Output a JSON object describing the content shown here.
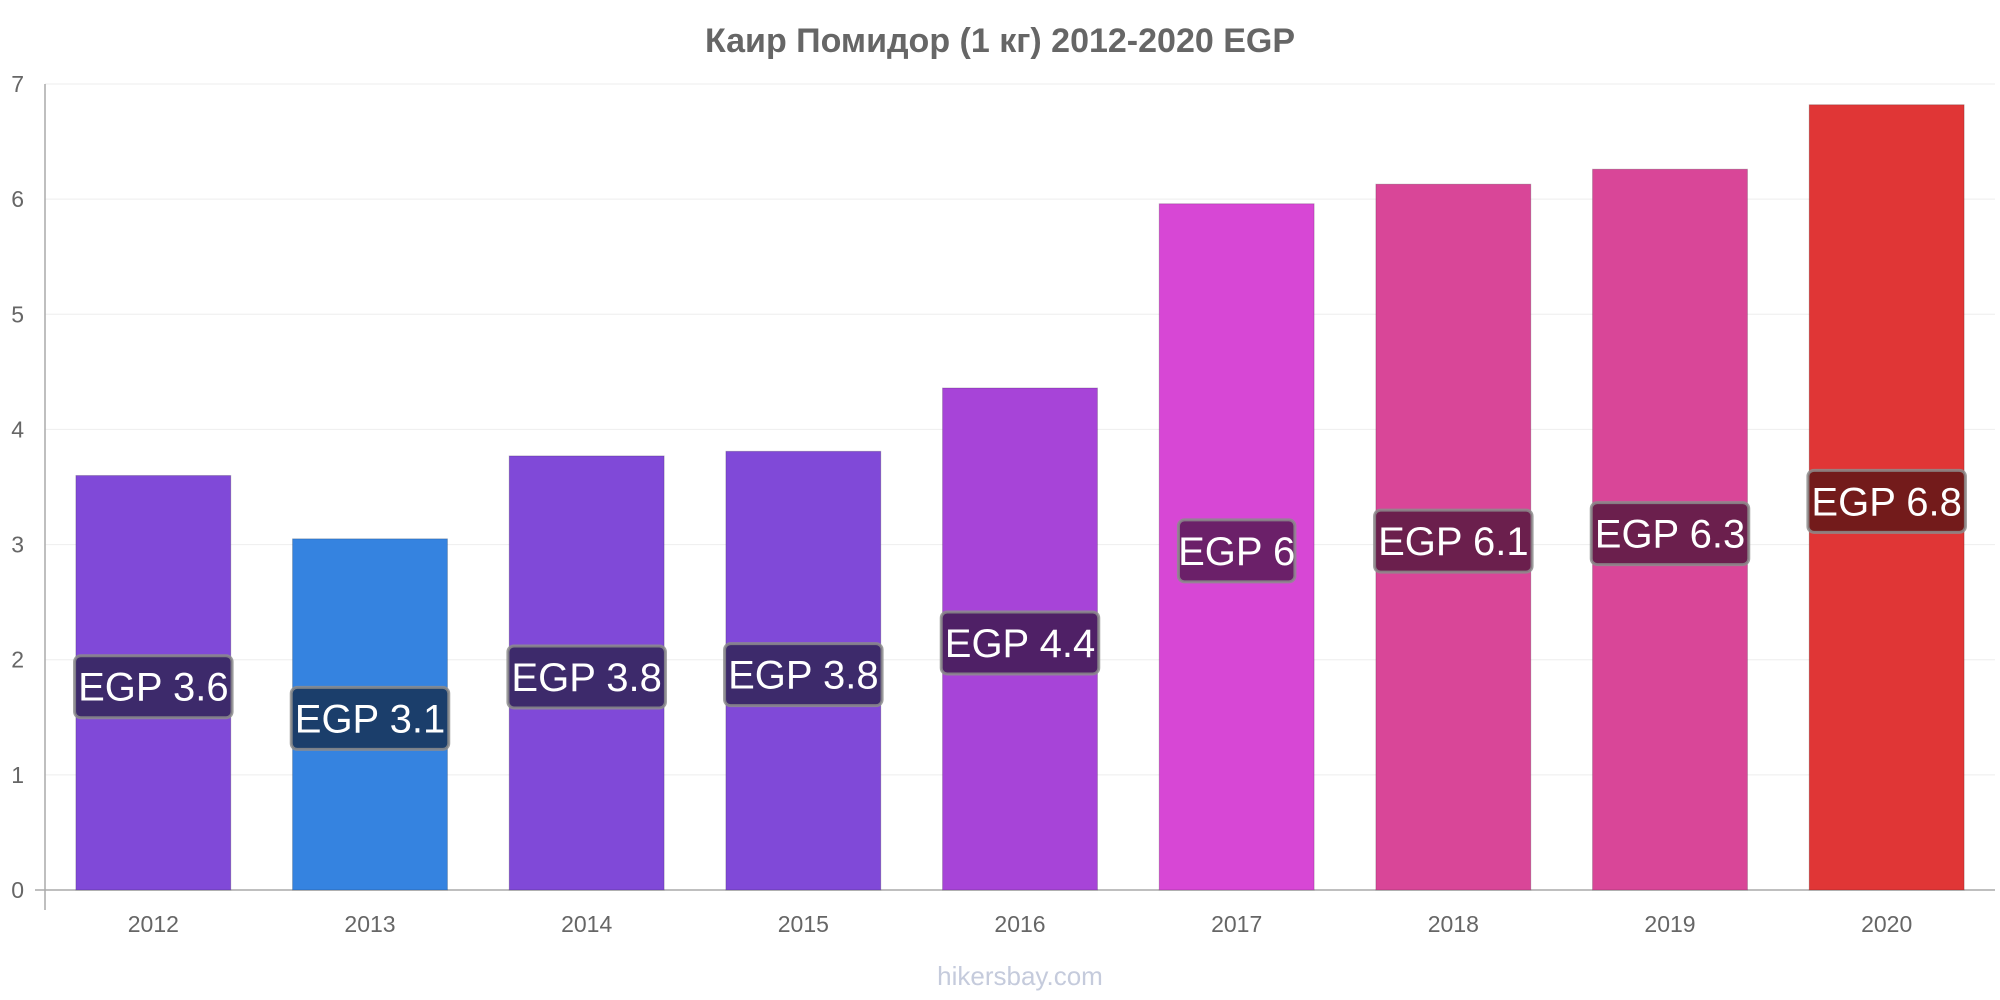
{
  "chart_data": {
    "type": "bar",
    "title": "Каир Помидор (1 кг) 2012-2020 EGP",
    "categories": [
      "2012",
      "2013",
      "2014",
      "2015",
      "2016",
      "2017",
      "2018",
      "2019",
      "2020"
    ],
    "values": [
      3.6,
      3.05,
      3.77,
      3.81,
      4.36,
      5.96,
      6.13,
      6.26,
      6.82
    ],
    "data_labels": [
      "EGP 3.6",
      "EGP 3.1",
      "EGP 3.8",
      "EGP 3.8",
      "EGP 4.4",
      "EGP 6",
      "EGP 6.1",
      "EGP 6.3",
      "EGP 6.8"
    ],
    "colors": [
      "#8049d8",
      "#3583e0",
      "#8049d8",
      "#8049d8",
      "#a744d8",
      "#d747d5",
      "#d94698",
      "#d94698",
      "#e03636"
    ],
    "label_colors": [
      "#3d2a6b",
      "#1b3e6b",
      "#3d2a6b",
      "#3d2a6b",
      "#4f2066",
      "#6b2069",
      "#6b1f4d",
      "#6b1f4d",
      "#731b1b"
    ],
    "ylim": [
      0,
      7
    ],
    "yticks": [
      "0",
      "1",
      "2",
      "3",
      "4",
      "5",
      "6",
      "7"
    ],
    "grid": true,
    "xlabel": "",
    "ylabel": ""
  },
  "footer": {
    "credit": "hikersbay.com"
  }
}
